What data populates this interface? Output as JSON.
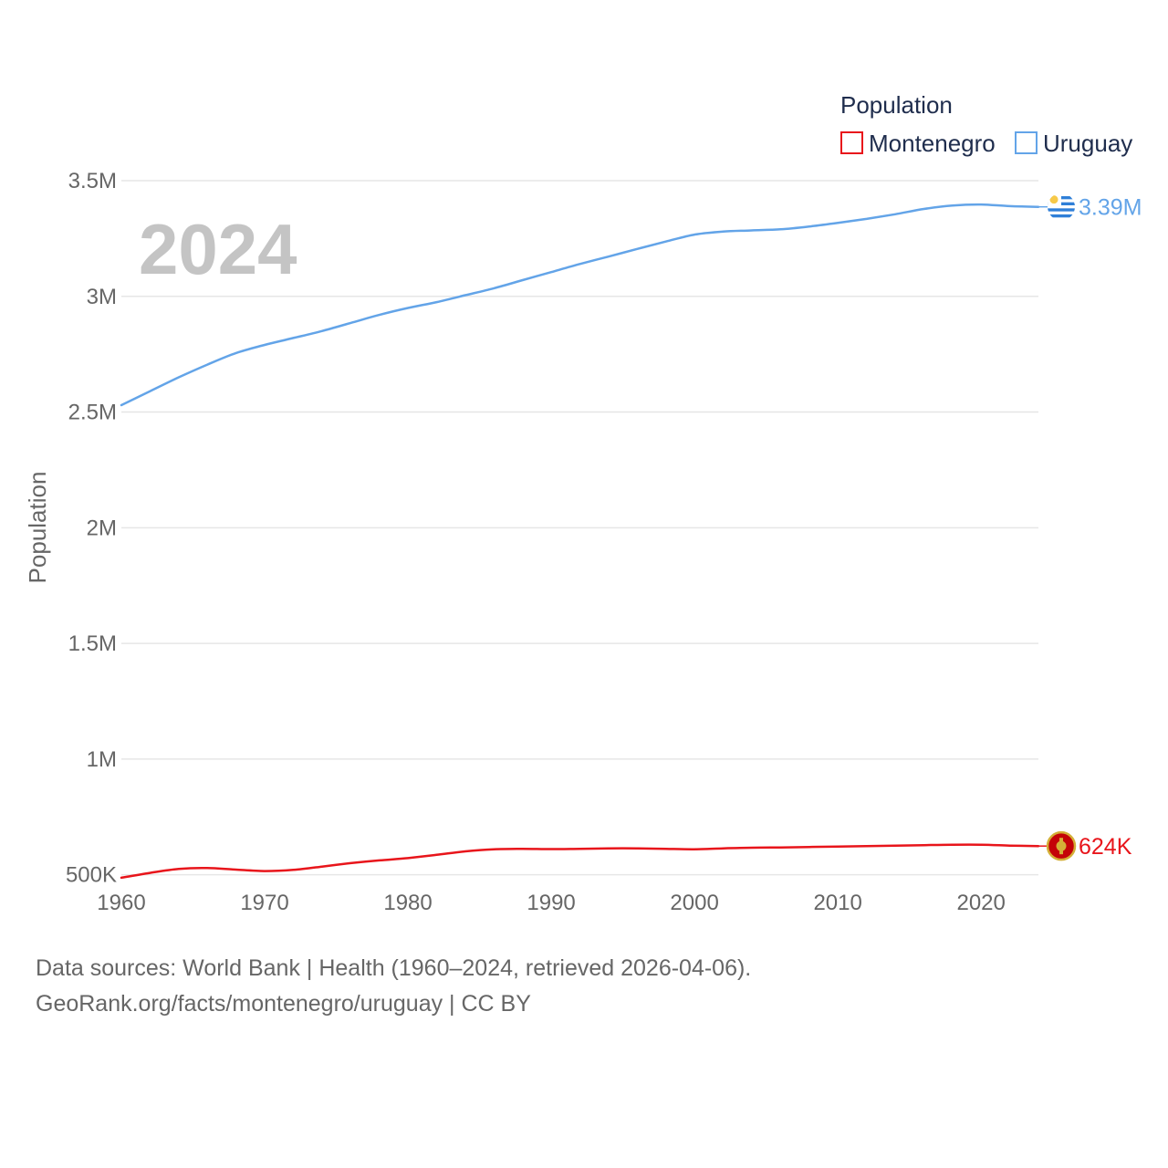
{
  "chart_data": {
    "type": "line",
    "year_overlay": "2024",
    "ylabel": "Population",
    "xlabel": "",
    "xlim": [
      1960,
      2024
    ],
    "ylim": [
      250000,
      3650000
    ],
    "x_ticks": [
      {
        "value": 1960,
        "label": "1960"
      },
      {
        "value": 1970,
        "label": "1970"
      },
      {
        "value": 1980,
        "label": "1980"
      },
      {
        "value": 1990,
        "label": "1990"
      },
      {
        "value": 2000,
        "label": "2000"
      },
      {
        "value": 2010,
        "label": "2010"
      },
      {
        "value": 2020,
        "label": "2020"
      }
    ],
    "y_ticks": [
      {
        "value": 500000,
        "label": "500K"
      },
      {
        "value": 1000000,
        "label": "1M"
      },
      {
        "value": 1500000,
        "label": "1.5M"
      },
      {
        "value": 2000000,
        "label": "2M"
      },
      {
        "value": 2500000,
        "label": "2.5M"
      },
      {
        "value": 3000000,
        "label": "3M"
      },
      {
        "value": 3500000,
        "label": "3.5M"
      }
    ],
    "legend": {
      "title": "Population",
      "position": "top-right"
    },
    "series": [
      {
        "name": "Montenegro",
        "color": "#e8151b",
        "end_label": "624K",
        "flag_icon": "montenegro-flag-icon",
        "x": [
          1960,
          1962,
          1964,
          1966,
          1968,
          1970,
          1972,
          1974,
          1976,
          1978,
          1980,
          1982,
          1984,
          1986,
          1988,
          1990,
          1992,
          1994,
          1996,
          1998,
          2000,
          2002,
          2004,
          2006,
          2008,
          2010,
          2012,
          2014,
          2016,
          2018,
          2020,
          2022,
          2024
        ],
        "values": [
          487000,
          508000,
          525000,
          529000,
          522000,
          516000,
          521000,
          535000,
          550000,
          562000,
          572000,
          586000,
          601000,
          610000,
          612000,
          611000,
          612000,
          614000,
          614000,
          612000,
          610000,
          614000,
          617000,
          618000,
          620000,
          622000,
          624000,
          626000,
          628000,
          630000,
          630000,
          626000,
          624000
        ]
      },
      {
        "name": "Uruguay",
        "color": "#63a4e8",
        "end_label": "3.39M",
        "flag_icon": "uruguay-flag-icon",
        "x": [
          1960,
          1962,
          1964,
          1966,
          1968,
          1970,
          1972,
          1974,
          1976,
          1978,
          1980,
          1982,
          1984,
          1986,
          1988,
          1990,
          1992,
          1994,
          1996,
          1998,
          2000,
          2002,
          2004,
          2006,
          2008,
          2010,
          2012,
          2014,
          2016,
          2018,
          2020,
          2022,
          2024
        ],
        "values": [
          2530000,
          2590000,
          2650000,
          2705000,
          2755000,
          2790000,
          2820000,
          2850000,
          2885000,
          2920000,
          2950000,
          2975000,
          3005000,
          3035000,
          3070000,
          3105000,
          3140000,
          3172000,
          3205000,
          3237000,
          3267000,
          3280000,
          3285000,
          3290000,
          3302000,
          3318000,
          3335000,
          3355000,
          3378000,
          3393000,
          3397000,
          3390000,
          3387000
        ]
      }
    ]
  },
  "footer": {
    "line1": "Data sources: World Bank | Health (1960–2024, retrieved 2026-04-06).",
    "line2": "GeoRank.org/facts/montenegro/uruguay | CC BY"
  }
}
